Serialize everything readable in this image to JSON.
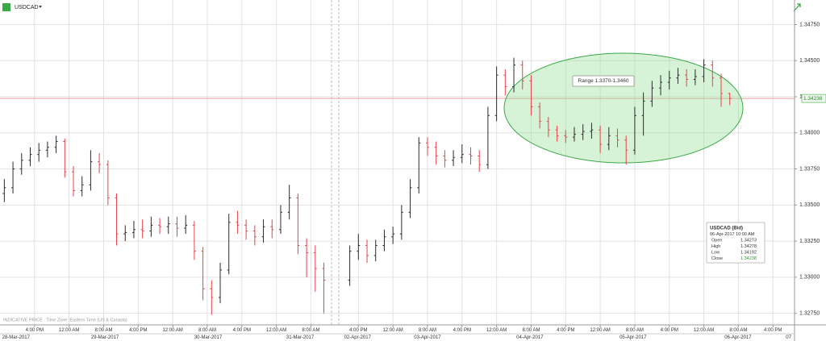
{
  "chart_data": {
    "type": "ohlc",
    "title": "USDCAD",
    "annotation": "Range 1.3370-1.3460",
    "footnote": "INDICATIVE PRICE . Time Zone: Eastern Time (US & Canada)",
    "up_color": "#2b2b2b",
    "down_color": "#e8424a",
    "grid": true,
    "xlim": [
      0,
      184
    ],
    "ylim": [
      1.3267,
      1.3492
    ],
    "yticks": [
      {
        "value": 1.3275,
        "label": "1.32750"
      },
      {
        "value": 1.33,
        "label": "1.33000"
      },
      {
        "value": 1.3325,
        "label": "1.33250"
      },
      {
        "value": 1.335,
        "label": "1.33500"
      },
      {
        "value": 1.3375,
        "label": "1.33750"
      },
      {
        "value": 1.34,
        "label": "1.34000"
      },
      {
        "value": 1.3425,
        "label": "1.34250"
      },
      {
        "value": 1.345,
        "label": "1.34500"
      },
      {
        "value": 1.3475,
        "label": "1.34750"
      }
    ],
    "xticks": [
      {
        "value": 8,
        "label": "4:00 PM"
      },
      {
        "value": 16,
        "label": "12:00 AM"
      },
      {
        "value": 24,
        "label": "8:00 AM"
      },
      {
        "value": 32,
        "label": "4:00 PM"
      },
      {
        "value": 40,
        "label": "12:00 AM"
      },
      {
        "value": 48,
        "label": "8:00 AM"
      },
      {
        "value": 56,
        "label": "4:00 PM"
      },
      {
        "value": 64,
        "label": "12:00 AM"
      },
      {
        "value": 72,
        "label": "8:00 AM"
      },
      {
        "value": 83,
        "label": "4:00 PM"
      },
      {
        "value": 91,
        "label": "12:00 AM"
      },
      {
        "value": 99,
        "label": "8:00 AM"
      },
      {
        "value": 107,
        "label": "4:00 PM"
      },
      {
        "value": 115,
        "label": "12:00 AM"
      },
      {
        "value": 123,
        "label": "8:00 AM"
      },
      {
        "value": 131,
        "label": "4:00 PM"
      },
      {
        "value": 139,
        "label": "12:00 AM"
      },
      {
        "value": 147,
        "label": "8:00 AM"
      },
      {
        "value": 155,
        "label": "4:00 PM"
      },
      {
        "value": 163,
        "label": "12:00 AM"
      },
      {
        "value": 171,
        "label": "8:00 AM"
      },
      {
        "value": 179,
        "label": "4:00 PM"
      }
    ],
    "date_ticks": [
      {
        "value": 3.7,
        "label": "28-Mar-2017"
      },
      {
        "value": 24.3,
        "label": "29-Mar-2017"
      },
      {
        "value": 48.2,
        "label": "30-Mar-2017"
      },
      {
        "value": 69.5,
        "label": "31-Mar-2017"
      },
      {
        "value": 82.8,
        "label": "02-Apr-2017"
      },
      {
        "value": 99,
        "label": "03-Apr-2017"
      },
      {
        "value": 122.7,
        "label": "04-Apr-2017"
      },
      {
        "value": 146.6,
        "label": "05-Apr-2017"
      },
      {
        "value": 170.9,
        "label": "06-Apr-2017"
      },
      {
        "value": 182,
        "label": "07"
      }
    ],
    "x": [
      1,
      3,
      5,
      7,
      9,
      11,
      13,
      15,
      17,
      19,
      21,
      23,
      25,
      27,
      29,
      31,
      33,
      35,
      37,
      39,
      41,
      43,
      45,
      47,
      49,
      51,
      53,
      55,
      57,
      59,
      61,
      63,
      65,
      67,
      69,
      71,
      73,
      75,
      81,
      83,
      85,
      87,
      89,
      91,
      93,
      95,
      97,
      99,
      101,
      103,
      105,
      107,
      109,
      111,
      113,
      115,
      117,
      119,
      121,
      123,
      125,
      127,
      129,
      131,
      133,
      135,
      137,
      139,
      141,
      143,
      145,
      147,
      149,
      151,
      153,
      155,
      157,
      159,
      161,
      163,
      165,
      167,
      169
    ],
    "open": [
      1.3358,
      1.3362,
      1.3375,
      1.3381,
      1.3385,
      1.3388,
      1.339,
      1.3394,
      1.3373,
      1.336,
      1.3364,
      1.338,
      1.3378,
      1.3355,
      1.333,
      1.3331,
      1.3333,
      1.3332,
      1.3336,
      1.3335,
      1.3337,
      1.3334,
      1.3336,
      1.3318,
      1.3292,
      1.3286,
      1.3305,
      1.3338,
      1.3336,
      1.3332,
      1.3328,
      1.3335,
      1.3333,
      1.3345,
      1.3355,
      1.3322,
      1.3317,
      1.3306,
      1.3298,
      1.3318,
      1.3322,
      1.3315,
      1.3322,
      1.3328,
      1.333,
      1.3345,
      1.3362,
      1.3393,
      1.339,
      1.3384,
      1.3381,
      1.3383,
      1.3385,
      1.3384,
      1.3378,
      1.3412,
      1.344,
      1.3432,
      1.3447,
      1.3436,
      1.3418,
      1.3408,
      1.3402,
      1.3398,
      1.3397,
      1.3399,
      1.3401,
      1.3402,
      1.3392,
      1.3398,
      1.3395,
      1.3388,
      1.3412,
      1.3422,
      1.3431,
      1.3435,
      1.3438,
      1.344,
      1.3437,
      1.3439,
      1.3447,
      1.3438,
      1.34273
    ],
    "high": [
      1.3368,
      1.338,
      1.3386,
      1.339,
      1.3393,
      1.3394,
      1.3398,
      1.3396,
      1.3377,
      1.337,
      1.3388,
      1.3386,
      1.3381,
      1.3358,
      1.3336,
      1.3339,
      1.334,
      1.3342,
      1.3341,
      1.3342,
      1.3342,
      1.3343,
      1.3339,
      1.3321,
      1.3298,
      1.331,
      1.3344,
      1.3346,
      1.334,
      1.3336,
      1.334,
      1.334,
      1.335,
      1.3364,
      1.3358,
      1.3327,
      1.3322,
      1.331,
      1.3322,
      1.333,
      1.3326,
      1.3326,
      1.3333,
      1.3335,
      1.335,
      1.3368,
      1.3397,
      1.3397,
      1.3394,
      1.3388,
      1.3388,
      1.3392,
      1.339,
      1.3388,
      1.3418,
      1.3446,
      1.3444,
      1.3452,
      1.345,
      1.344,
      1.3421,
      1.3411,
      1.3405,
      1.3402,
      1.3404,
      1.3406,
      1.3407,
      1.3405,
      1.3404,
      1.3403,
      1.3398,
      1.3418,
      1.3428,
      1.3436,
      1.344,
      1.3443,
      1.3445,
      1.3444,
      1.3444,
      1.3451,
      1.345,
      1.3441,
      1.34278
    ],
    "low": [
      1.3352,
      1.3358,
      1.3371,
      1.3377,
      1.338,
      1.3383,
      1.3386,
      1.3369,
      1.3356,
      1.3356,
      1.336,
      1.3372,
      1.335,
      1.3322,
      1.3325,
      1.3327,
      1.3327,
      1.3328,
      1.333,
      1.333,
      1.3328,
      1.333,
      1.3312,
      1.3284,
      1.3274,
      1.3282,
      1.3302,
      1.333,
      1.3326,
      1.3322,
      1.3324,
      1.3327,
      1.333,
      1.334,
      1.3316,
      1.33,
      1.329,
      1.3275,
      1.3294,
      1.3312,
      1.331,
      1.3311,
      1.3318,
      1.3323,
      1.3326,
      1.3341,
      1.3358,
      1.3384,
      1.3378,
      1.3376,
      1.3377,
      1.3379,
      1.3378,
      1.3373,
      1.3375,
      1.3408,
      1.3426,
      1.3428,
      1.343,
      1.3412,
      1.3403,
      1.3397,
      1.3394,
      1.3393,
      1.3394,
      1.3395,
      1.3396,
      1.3386,
      1.3388,
      1.339,
      1.3378,
      1.3385,
      1.3398,
      1.3418,
      1.3426,
      1.343,
      1.3434,
      1.3432,
      1.3433,
      1.3435,
      1.3432,
      1.3418,
      1.34192
    ],
    "close": [
      1.3362,
      1.3375,
      1.3381,
      1.3385,
      1.3388,
      1.339,
      1.3394,
      1.3373,
      1.336,
      1.3364,
      1.338,
      1.3378,
      1.3355,
      1.333,
      1.3331,
      1.3333,
      1.3332,
      1.3336,
      1.3335,
      1.3337,
      1.3334,
      1.3336,
      1.3318,
      1.3292,
      1.3286,
      1.3305,
      1.3338,
      1.3336,
      1.3332,
      1.3328,
      1.3335,
      1.3333,
      1.3345,
      1.3355,
      1.3322,
      1.3317,
      1.3306,
      1.3298,
      1.3318,
      1.3322,
      1.3315,
      1.3322,
      1.3328,
      1.333,
      1.3345,
      1.3362,
      1.3393,
      1.339,
      1.3384,
      1.3381,
      1.3383,
      1.3385,
      1.3384,
      1.3378,
      1.3412,
      1.344,
      1.3432,
      1.3447,
      1.3436,
      1.3418,
      1.3408,
      1.3402,
      1.3398,
      1.3397,
      1.3399,
      1.3401,
      1.3402,
      1.3392,
      1.3398,
      1.3395,
      1.3388,
      1.3412,
      1.3422,
      1.3431,
      1.3435,
      1.3438,
      1.344,
      1.3437,
      1.3439,
      1.3447,
      1.3438,
      1.34273,
      1.34238
    ],
    "info": {
      "title": "USDCAD (Bid)",
      "time": "06-Apr-2017 10:00 AM",
      "labels": [
        "Open",
        "High",
        "Low",
        "Close"
      ]
    }
  }
}
